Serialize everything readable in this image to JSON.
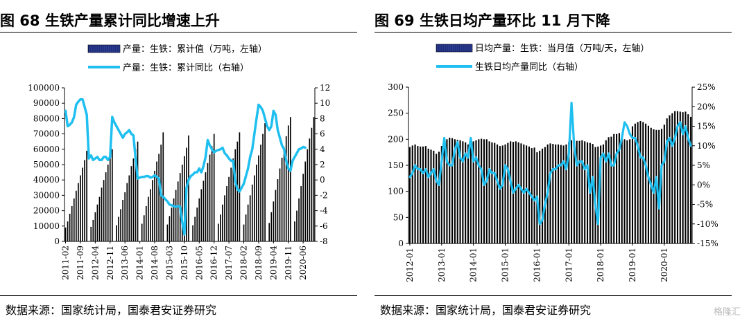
{
  "source_label": "数据来源：国家统计局，国泰君安证券研究",
  "watermark": "格隆汇",
  "chart_data": [
    {
      "type": "bar+line",
      "title": "图 68  生铁产量累计同比增速上升",
      "x_tick_labels": [
        "2011-02",
        "2011-09",
        "2012-04",
        "2012-11",
        "2013-06",
        "2014-01",
        "2014-08",
        "2015-03",
        "2015-10",
        "2016-05",
        "2016-12",
        "2017-07",
        "2018-02",
        "2018-09",
        "2019-04",
        "2019-11",
        "2020-06"
      ],
      "x_start": "2011-02",
      "x_end": "2020-11",
      "y_left": {
        "min": 0,
        "max": 100000,
        "step": 10000
      },
      "y_right": {
        "min": -8,
        "max": 12,
        "step": 2
      },
      "legend": [
        "产量：生铁：累计值（万吨，左轴）",
        "产量：生铁：累计同比（右轴）"
      ],
      "series_bar_ytd": [
        {
          "year": 2011,
          "from_month": 2,
          "values": [
            9000,
            13000,
            18000,
            23000,
            28000,
            33000,
            38000,
            43000,
            48000,
            53000,
            59000
          ]
        },
        {
          "year": 2012,
          "from_month": 2,
          "values": [
            9500,
            14000,
            19000,
            24000,
            29000,
            35000,
            40000,
            45000,
            50000,
            55000,
            60000
          ]
        },
        {
          "year": 2013,
          "from_month": 2,
          "values": [
            10500,
            16000,
            21000,
            27000,
            32000,
            38000,
            43000,
            49000,
            54000,
            60000,
            65000
          ]
        },
        {
          "year": 2014,
          "from_month": 2,
          "values": [
            11500,
            17000,
            23000,
            29000,
            34000,
            40000,
            46000,
            52000,
            57000,
            63000,
            71000
          ]
        },
        {
          "year": 2015,
          "from_month": 2,
          "values": [
            11000,
            16500,
            22000,
            28000,
            33500,
            39000,
            44500,
            50000,
            55500,
            61000,
            69000
          ]
        },
        {
          "year": 2016,
          "from_month": 2,
          "values": [
            10500,
            16000,
            22000,
            28000,
            34000,
            39500,
            45000,
            51000,
            56500,
            62000,
            70000
          ]
        },
        {
          "year": 2017,
          "from_month": 2,
          "values": [
            11500,
            17500,
            24000,
            30000,
            36000,
            42000,
            48000,
            54000,
            60000,
            65000,
            71000
          ]
        },
        {
          "year": 2018,
          "from_month": 2,
          "values": [
            11000,
            17500,
            24000,
            30000,
            37000,
            43000,
            50000,
            56000,
            63000,
            70000,
            77000
          ]
        },
        {
          "year": 2019,
          "from_month": 2,
          "values": [
            12000,
            19000,
            26000,
            33500,
            40500,
            47500,
            54500,
            61500,
            68500,
            75500,
            81000
          ]
        },
        {
          "year": 2020,
          "from_month": 2,
          "values": [
            13000,
            20000,
            28000,
            36000,
            44000,
            52000,
            60000,
            67000,
            74000,
            81000
          ]
        }
      ],
      "series_line_yoy_start": "2011-02",
      "series_line_yoy": [
        9.0,
        7.0,
        7.2,
        7.5,
        8.2,
        9.8,
        10.2,
        10.5,
        10.5,
        9.5,
        8.5,
        2.8,
        3.2,
        2.6,
        2.8,
        3.0,
        2.6,
        2.6,
        3.0,
        3.0,
        2.6,
        3.0,
        8.2,
        7.5,
        7.0,
        6.5,
        6.0,
        5.5,
        6.0,
        6.2,
        6.5,
        6.0,
        5.8,
        2.8,
        0.2,
        0.3,
        0.4,
        0.4,
        0.5,
        0.5,
        0.3,
        0.4,
        0.6,
        0.4,
        0.2,
        -2.0,
        -2.2,
        -2.5,
        -2.8,
        -3.2,
        -3.3,
        -3.4,
        -3.5,
        -3.4,
        -3.5,
        -5.5,
        -7.1,
        -1.0,
        0.0,
        0.5,
        0.7,
        1.0,
        1.0,
        1.5,
        1.0,
        1.8,
        3.0,
        5.2,
        4.5,
        4.0,
        3.6,
        3.8,
        3.9,
        4.0,
        4.2,
        3.5,
        3.2,
        2.8,
        2.5,
        2.5,
        -0.2,
        -1.2,
        -1.5,
        -1.0,
        -0.5,
        0.5,
        1.5,
        3.0,
        4.0,
        6.0,
        8.0,
        9.8,
        9.5,
        9.0,
        8.0,
        7.0,
        6.5,
        7.0,
        9.0,
        8.5,
        6.5,
        5.5,
        4.5,
        4.0,
        2.5,
        1.5,
        1.2,
        2.5,
        3.0,
        3.5,
        4.0,
        4.1,
        4.3,
        4.2
      ]
    },
    {
      "type": "bar+line",
      "title": "图 69  生铁日均产量环比 11 月下降",
      "x_tick_labels": [
        "2012-01",
        "2013-01",
        "2014-01",
        "2015-01",
        "2016-01",
        "2017-01",
        "2018-01",
        "2019-01",
        "2020-01"
      ],
      "x_start": "2012-01",
      "x_end": "2020-11",
      "y_left": {
        "min": 0,
        "max": 300,
        "step": 50
      },
      "y_right": {
        "min": -15,
        "max": 25,
        "step": 5,
        "unit": "%"
      },
      "legend": [
        "日均产量：生铁：当月值（万吨/天，左轴）",
        "生铁日均产量同比（右轴）"
      ],
      "series_bar_monthly": [
        185,
        188,
        190,
        187,
        186,
        186,
        187,
        182,
        180,
        178,
        172,
        176,
        187,
        195,
        200,
        203,
        202,
        200,
        199,
        198,
        196,
        194,
        190,
        190,
        196,
        198,
        200,
        201,
        200,
        200,
        196,
        194,
        193,
        190,
        187,
        188,
        190,
        193,
        196,
        195,
        196,
        194,
        192,
        190,
        188,
        186,
        183,
        184,
        175,
        178,
        182,
        185,
        190,
        192,
        191,
        190,
        190,
        189,
        188,
        190,
        195,
        198,
        200,
        197,
        197,
        198,
        196,
        194,
        193,
        191,
        185,
        186,
        188,
        190,
        198,
        204,
        205,
        210,
        210,
        212,
        205,
        200,
        198,
        200,
        225,
        230,
        233,
        235,
        233,
        230,
        226,
        222,
        219,
        218,
        218,
        220,
        228,
        240,
        246,
        250,
        254,
        254,
        253,
        252,
        253,
        248,
        243
      ],
      "series_line_yoy_start": "2012-01",
      "series_line_yoy": [
        2,
        3,
        5,
        4,
        4,
        3,
        4,
        2,
        3,
        4,
        1,
        0,
        6,
        12,
        6,
        5,
        5,
        9,
        11,
        7,
        6,
        8,
        7,
        12,
        6,
        7,
        5,
        4,
        0,
        1,
        4,
        3,
        3,
        1,
        -1,
        0,
        5,
        4,
        1,
        -2,
        -1,
        0,
        -1,
        -2,
        -1,
        -2,
        -3,
        -4,
        -3,
        -10,
        -9,
        -5,
        -2,
        3,
        4,
        4,
        5,
        5,
        6,
        4,
        8,
        21,
        10,
        5,
        6,
        6,
        4,
        5,
        -2,
        2,
        -5,
        -10,
        7,
        8,
        6,
        8,
        5,
        5,
        8,
        9,
        12,
        16,
        15,
        13,
        12,
        12,
        10,
        7,
        7,
        5,
        2,
        0,
        -2,
        2,
        -6,
        5,
        6,
        11,
        12,
        10,
        12,
        15,
        16,
        13,
        15,
        12,
        10
      ]
    }
  ]
}
